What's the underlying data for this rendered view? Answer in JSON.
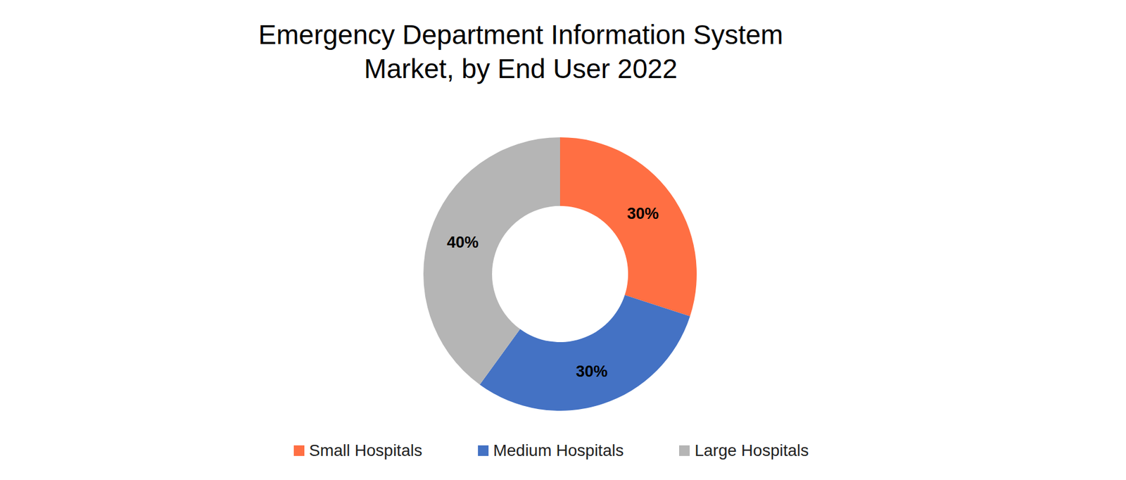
{
  "chart_data": {
    "type": "pie",
    "title": "Emergency Department Information System Market, by End User 2022",
    "categories": [
      "Small Hospitals",
      "Medium Hospitals",
      "Large Hospitals"
    ],
    "values": [
      30,
      30,
      40
    ],
    "value_labels": [
      "30%",
      "30%",
      "40%"
    ],
    "colors": [
      "#ff6f43",
      "#4472c4",
      "#b5b5b5"
    ],
    "data_labels": true,
    "legend": "bottom"
  }
}
